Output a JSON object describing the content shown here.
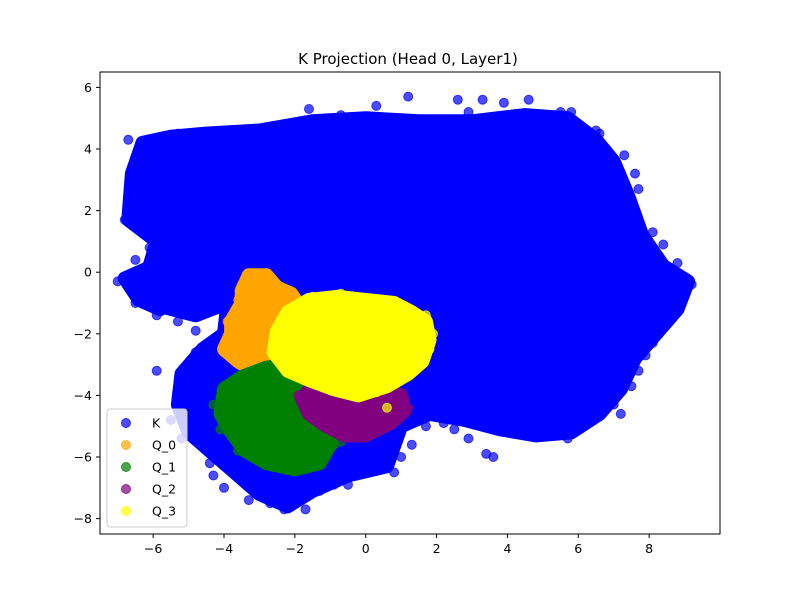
{
  "chart_data": {
    "type": "scatter",
    "title": "K Projection (Head 0, Layer1)",
    "xlabel": "",
    "ylabel": "",
    "xlim": [
      -7.5,
      10.0
    ],
    "ylim": [
      -8.5,
      6.5
    ],
    "xticks": [
      -6,
      -4,
      -2,
      0,
      2,
      4,
      6,
      8
    ],
    "yticks": [
      -8,
      -6,
      -4,
      -2,
      0,
      2,
      4,
      6
    ],
    "legend_placement": "lower-left",
    "grid": false,
    "series": [
      {
        "name": "K",
        "color": "#0000ff",
        "alpha": 0.7,
        "regions": [
          [
            [
              -6.7,
              1.7
            ],
            [
              -6.6,
              3.2
            ],
            [
              -6.3,
              4.2
            ],
            [
              -5.5,
              4.4
            ],
            [
              -4.5,
              4.5
            ],
            [
              -3.0,
              4.6
            ],
            [
              -1.5,
              4.9
            ],
            [
              0.0,
              5.0
            ],
            [
              1.5,
              4.9
            ],
            [
              3.0,
              4.9
            ],
            [
              4.5,
              5.1
            ],
            [
              5.7,
              5.0
            ],
            [
              6.5,
              4.3
            ],
            [
              7.0,
              3.6
            ],
            [
              7.4,
              2.5
            ],
            [
              7.8,
              1.2
            ],
            [
              8.4,
              0.2
            ],
            [
              9.1,
              -0.3
            ],
            [
              8.8,
              -1.2
            ],
            [
              8.2,
              -2.0
            ],
            [
              7.6,
              -2.8
            ],
            [
              7.2,
              -3.8
            ],
            [
              6.6,
              -4.6
            ],
            [
              5.8,
              -5.2
            ],
            [
              4.8,
              -5.3
            ],
            [
              3.8,
              -5.1
            ],
            [
              2.8,
              -4.8
            ],
            [
              1.8,
              -4.6
            ],
            [
              1.0,
              -5.0
            ],
            [
              0.6,
              -6.3
            ],
            [
              -0.5,
              -6.6
            ],
            [
              -1.5,
              -7.1
            ],
            [
              -2.2,
              -7.6
            ],
            [
              -3.0,
              -7.2
            ],
            [
              -3.7,
              -6.5
            ],
            [
              -4.4,
              -5.8
            ],
            [
              -5.0,
              -5.2
            ],
            [
              -5.3,
              -4.3
            ],
            [
              -5.2,
              -3.3
            ],
            [
              -4.6,
              -2.5
            ],
            [
              -4.0,
              -2.0
            ],
            [
              -3.9,
              -1.0
            ],
            [
              -4.8,
              -1.4
            ],
            [
              -5.8,
              -1.1
            ],
            [
              -6.5,
              -0.5
            ],
            [
              -6.1,
              0.2
            ],
            [
              -5.9,
              1.0
            ]
          ],
          [
            [
              -6.8,
              -0.2
            ],
            [
              -6.2,
              0.1
            ],
            [
              -5.6,
              -0.2
            ],
            [
              -5.3,
              -0.8
            ],
            [
              -5.8,
              -1.2
            ],
            [
              -6.4,
              -0.9
            ]
          ]
        ],
        "points": [
          [
            -6.7,
            4.3
          ],
          [
            -6.5,
            3.6
          ],
          [
            -6.6,
            2.9
          ],
          [
            -6.8,
            1.7
          ],
          [
            -5.3,
            4.5
          ],
          [
            -4.1,
            4.5
          ],
          [
            -2.8,
            4.7
          ],
          [
            -2.3,
            4.6
          ],
          [
            -1.6,
            5.3
          ],
          [
            -0.7,
            5.1
          ],
          [
            0.3,
            5.4
          ],
          [
            1.2,
            5.7
          ],
          [
            2.6,
            5.6
          ],
          [
            2.9,
            5.2
          ],
          [
            3.3,
            5.6
          ],
          [
            3.9,
            5.5
          ],
          [
            4.6,
            5.6
          ],
          [
            5.5,
            5.2
          ],
          [
            5.8,
            5.2
          ],
          [
            6.5,
            4.6
          ],
          [
            6.6,
            4.5
          ],
          [
            7.3,
            3.8
          ],
          [
            7.6,
            3.2
          ],
          [
            7.1,
            2.8
          ],
          [
            7.7,
            2.7
          ],
          [
            7.6,
            2.0
          ],
          [
            8.1,
            1.3
          ],
          [
            8.4,
            0.9
          ],
          [
            8.2,
            0.1
          ],
          [
            8.8,
            0.3
          ],
          [
            9.2,
            -0.4
          ],
          [
            8.6,
            -0.7
          ],
          [
            8.3,
            -1.6
          ],
          [
            8.1,
            -2.3
          ],
          [
            7.9,
            -2.7
          ],
          [
            7.7,
            -3.2
          ],
          [
            7.5,
            -3.7
          ],
          [
            7.0,
            -4.3
          ],
          [
            7.2,
            -4.6
          ],
          [
            6.3,
            -4.8
          ],
          [
            5.7,
            -5.4
          ],
          [
            5.3,
            -5.3
          ],
          [
            4.6,
            -5.3
          ],
          [
            4.2,
            -5.2
          ],
          [
            3.6,
            -5.0
          ],
          [
            3.4,
            -5.9
          ],
          [
            3.6,
            -6.0
          ],
          [
            2.9,
            -5.4
          ],
          [
            2.5,
            -5.1
          ],
          [
            2.2,
            -4.9
          ],
          [
            1.7,
            -5.0
          ],
          [
            1.3,
            -5.6
          ],
          [
            1.0,
            -6.0
          ],
          [
            0.8,
            -6.5
          ],
          [
            -0.5,
            -6.9
          ],
          [
            -0.9,
            -6.9
          ],
          [
            -1.3,
            -7.1
          ],
          [
            -1.7,
            -7.7
          ],
          [
            -2.3,
            -7.7
          ],
          [
            -2.7,
            -7.5
          ],
          [
            -3.3,
            -7.4
          ],
          [
            -4.0,
            -7.0
          ],
          [
            -4.3,
            -6.6
          ],
          [
            -4.4,
            -6.2
          ],
          [
            -5.2,
            -5.4
          ],
          [
            -5.5,
            -4.8
          ],
          [
            -5.9,
            -3.2
          ],
          [
            -4.8,
            -2.6
          ],
          [
            -6.5,
            -1.0
          ],
          [
            -5.9,
            -1.4
          ],
          [
            -5.3,
            -1.6
          ],
          [
            -4.8,
            -1.9
          ],
          [
            -6.1,
            0.8
          ],
          [
            -6.5,
            0.4
          ],
          [
            -6.4,
            -0.2
          ],
          [
            -7.0,
            -0.3
          ]
        ]
      },
      {
        "name": "Q_0",
        "color": "#ffa500",
        "alpha": 0.7,
        "regions": [
          [
            [
              -3.3,
              -0.1
            ],
            [
              -2.8,
              -0.1
            ],
            [
              -2.5,
              -0.5
            ],
            [
              -2.1,
              -0.7
            ],
            [
              -1.8,
              -1.2
            ],
            [
              -1.6,
              -2.0
            ],
            [
              -1.8,
              -2.8
            ],
            [
              -2.3,
              -3.3
            ],
            [
              -3.0,
              -3.3
            ],
            [
              -3.6,
              -2.9
            ],
            [
              -4.0,
              -2.5
            ],
            [
              -3.8,
              -2.0
            ],
            [
              -3.8,
              -1.6
            ],
            [
              -3.5,
              -1.0
            ],
            [
              -3.5,
              -0.6
            ]
          ]
        ],
        "points": [
          [
            -3.1,
            -0.1
          ],
          [
            -2.9,
            -0.2
          ],
          [
            -4.0,
            -2.6
          ],
          [
            -3.9,
            -1.6
          ],
          [
            -3.6,
            -0.9
          ],
          [
            -2.2,
            -0.6
          ],
          [
            -2.0,
            -0.8
          ]
        ]
      },
      {
        "name": "Q_1",
        "color": "#008000",
        "alpha": 0.7,
        "regions": [
          [
            [
              -3.5,
              -3.4
            ],
            [
              -2.8,
              -3.1
            ],
            [
              -2.2,
              -3.0
            ],
            [
              -1.6,
              -3.4
            ],
            [
              -1.2,
              -3.9
            ],
            [
              -1.1,
              -4.8
            ],
            [
              -1.0,
              -5.6
            ],
            [
              -1.3,
              -6.2
            ],
            [
              -2.0,
              -6.4
            ],
            [
              -2.8,
              -6.2
            ],
            [
              -3.4,
              -5.8
            ],
            [
              -3.8,
              -5.2
            ],
            [
              -4.1,
              -4.6
            ],
            [
              -4.0,
              -3.8
            ]
          ]
        ],
        "points": [
          [
            -4.3,
            -4.3
          ],
          [
            -4.0,
            -3.7
          ],
          [
            -4.1,
            -5.1
          ],
          [
            -3.6,
            -5.8
          ],
          [
            -2.4,
            -6.3
          ],
          [
            -1.5,
            -6.3
          ],
          [
            -0.9,
            -5.6
          ],
          [
            -0.7,
            -5.5
          ]
        ]
      },
      {
        "name": "Q_2",
        "color": "#800080",
        "alpha": 0.7,
        "regions": [
          [
            [
              -1.5,
              -3.7
            ],
            [
              -0.6,
              -3.6
            ],
            [
              0.4,
              -3.8
            ],
            [
              1.0,
              -4.0
            ],
            [
              1.1,
              -4.5
            ],
            [
              0.7,
              -4.9
            ],
            [
              0.0,
              -5.3
            ],
            [
              -0.6,
              -5.3
            ],
            [
              -1.1,
              -5.0
            ],
            [
              -1.6,
              -4.6
            ],
            [
              -1.8,
              -4.1
            ]
          ]
        ],
        "points": [
          [
            -1.9,
            -4.0
          ],
          [
            1.2,
            -4.4
          ],
          [
            0.4,
            -4.1
          ]
        ]
      },
      {
        "name": "Q_3",
        "color": "#ffff00",
        "alpha": 0.7,
        "regions": [
          [
            [
              -2.2,
              -1.3
            ],
            [
              -1.6,
              -0.9
            ],
            [
              -0.8,
              -0.8
            ],
            [
              0.0,
              -0.9
            ],
            [
              0.8,
              -1.0
            ],
            [
              1.3,
              -1.3
            ],
            [
              1.7,
              -1.6
            ],
            [
              1.8,
              -2.2
            ],
            [
              1.6,
              -2.9
            ],
            [
              1.2,
              -3.3
            ],
            [
              0.6,
              -3.7
            ],
            [
              -0.2,
              -4.0
            ],
            [
              -0.9,
              -3.8
            ],
            [
              -1.6,
              -3.5
            ],
            [
              -2.2,
              -3.2
            ],
            [
              -2.6,
              -2.6
            ],
            [
              -2.5,
              -1.9
            ]
          ]
        ],
        "points": [
          [
            -0.7,
            -0.7
          ],
          [
            0.6,
            -1.1
          ],
          [
            1.1,
            -1.1
          ],
          [
            1.7,
            -1.4
          ],
          [
            1.9,
            -2.0
          ],
          [
            1.8,
            -2.5
          ],
          [
            0.3,
            -3.9
          ],
          [
            0.6,
            -4.4
          ],
          [
            -2.6,
            -2.2
          ],
          [
            -1.5,
            -0.8
          ]
        ]
      }
    ]
  }
}
